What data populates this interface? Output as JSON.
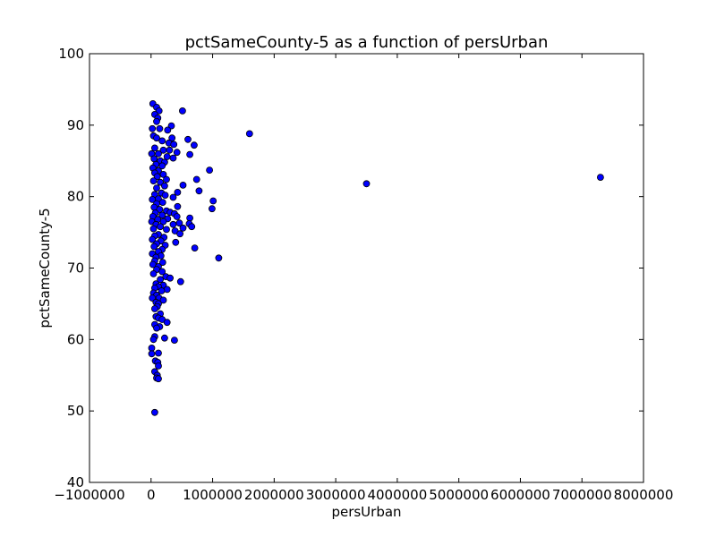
{
  "chart_data": {
    "type": "scatter",
    "title": "pctSameCounty-5 as a function of persUrban",
    "xlabel": "persUrban",
    "ylabel": "pctSameCounty-5",
    "xlim": [
      -1000000,
      8000000
    ],
    "ylim": [
      40,
      100
    ],
    "x_ticks": [
      -1000000,
      0,
      1000000,
      2000000,
      3000000,
      4000000,
      5000000,
      6000000,
      7000000,
      8000000
    ],
    "x_tick_labels": [
      "−1000000",
      "0",
      "1000000",
      "2000000",
      "3000000",
      "4000000",
      "5000000",
      "6000000",
      "7000000",
      "8000000"
    ],
    "y_ticks": [
      40,
      50,
      60,
      70,
      80,
      90,
      100
    ],
    "y_tick_labels": [
      "40",
      "50",
      "60",
      "70",
      "80",
      "90",
      "100"
    ],
    "grid": false,
    "marker_color": "#0000ff",
    "marker_edge_color": "#000000",
    "points": [
      [
        30000,
        93
      ],
      [
        90000,
        92.5
      ],
      [
        130000,
        92
      ],
      [
        510000,
        92
      ],
      [
        60000,
        91.5
      ],
      [
        110000,
        91
      ],
      [
        90000,
        90.5
      ],
      [
        330000,
        89.9
      ],
      [
        20000,
        89.5
      ],
      [
        140000,
        89.5
      ],
      [
        270000,
        89.3
      ],
      [
        1600000,
        88.8
      ],
      [
        40000,
        88.5
      ],
      [
        90000,
        88.2
      ],
      [
        340000,
        88.2
      ],
      [
        600000,
        88
      ],
      [
        180000,
        87.8
      ],
      [
        290000,
        87.5
      ],
      [
        370000,
        87.3
      ],
      [
        700000,
        87.2
      ],
      [
        60000,
        86.8
      ],
      [
        200000,
        86.5
      ],
      [
        300000,
        86.5
      ],
      [
        420000,
        86.2
      ],
      [
        10000,
        86
      ],
      [
        120000,
        86
      ],
      [
        630000,
        85.9
      ],
      [
        260000,
        85.6
      ],
      [
        360000,
        85.4
      ],
      [
        50000,
        85.3
      ],
      [
        150000,
        85
      ],
      [
        220000,
        84.8
      ],
      [
        80000,
        84.5
      ],
      [
        180000,
        84.3
      ],
      [
        30000,
        84
      ],
      [
        950000,
        83.7
      ],
      [
        120000,
        83.6
      ],
      [
        60000,
        83.3
      ],
      [
        200000,
        83.1
      ],
      [
        100000,
        82.8
      ],
      [
        740000,
        82.4
      ],
      [
        250000,
        82.4
      ],
      [
        7300000,
        82.7
      ],
      [
        3500000,
        81.8
      ],
      [
        40000,
        82.2
      ],
      [
        150000,
        82
      ],
      [
        520000,
        81.6
      ],
      [
        220000,
        81.5
      ],
      [
        90000,
        81.2
      ],
      [
        780000,
        80.8
      ],
      [
        430000,
        80.6
      ],
      [
        170000,
        80.5
      ],
      [
        60000,
        80.3
      ],
      [
        230000,
        80.2
      ],
      [
        360000,
        79.9
      ],
      [
        120000,
        79.7
      ],
      [
        20000,
        79.6
      ],
      [
        1010000,
        79.4
      ],
      [
        190000,
        79.2
      ],
      [
        90000,
        79
      ],
      [
        430000,
        78.6
      ],
      [
        50000,
        78.5
      ],
      [
        990000,
        78.3
      ],
      [
        140000,
        78.2
      ],
      [
        250000,
        78
      ],
      [
        310000,
        77.8
      ],
      [
        70000,
        77.7
      ],
      [
        380000,
        77.6
      ],
      [
        180000,
        77.4
      ],
      [
        420000,
        77.2
      ],
      [
        30000,
        77.2
      ],
      [
        630000,
        77
      ],
      [
        270000,
        76.9
      ],
      [
        110000,
        76.8
      ],
      [
        10000,
        76.5
      ],
      [
        200000,
        76.5
      ],
      [
        460000,
        76.3
      ],
      [
        620000,
        76.2
      ],
      [
        80000,
        76.1
      ],
      [
        360000,
        76.1
      ],
      [
        660000,
        75.8
      ],
      [
        150000,
        75.8
      ],
      [
        520000,
        75.6
      ],
      [
        40000,
        75.5
      ],
      [
        250000,
        75.4
      ],
      [
        390000,
        75.2
      ],
      [
        470000,
        74.8
      ],
      [
        120000,
        74.7
      ],
      [
        60000,
        74.5
      ],
      [
        210000,
        74.3
      ],
      [
        20000,
        74
      ],
      [
        160000,
        73.8
      ],
      [
        400000,
        73.6
      ],
      [
        90000,
        73.4
      ],
      [
        230000,
        73.2
      ],
      [
        50000,
        73
      ],
      [
        710000,
        72.8
      ],
      [
        180000,
        72.6
      ],
      [
        120000,
        72.3
      ],
      [
        20000,
        72
      ],
      [
        160000,
        71.7
      ],
      [
        80000,
        71.5
      ],
      [
        1100000,
        71.4
      ],
      [
        60000,
        71
      ],
      [
        190000,
        70.8
      ],
      [
        30000,
        70.5
      ],
      [
        120000,
        70.2
      ],
      [
        90000,
        69.8
      ],
      [
        180000,
        69.5
      ],
      [
        40000,
        69.2
      ],
      [
        240000,
        68.8
      ],
      [
        310000,
        68.6
      ],
      [
        150000,
        68.4
      ],
      [
        480000,
        68.1
      ],
      [
        80000,
        67.8
      ],
      [
        200000,
        67.6
      ],
      [
        120000,
        67.4
      ],
      [
        60000,
        67.2
      ],
      [
        260000,
        67
      ],
      [
        170000,
        66.8
      ],
      [
        40000,
        66.5
      ],
      [
        90000,
        66.2
      ],
      [
        130000,
        65.8
      ],
      [
        20000,
        65.8
      ],
      [
        200000,
        65.5
      ],
      [
        80000,
        65.2
      ],
      [
        120000,
        65
      ],
      [
        100000,
        64.6
      ],
      [
        60000,
        64.3
      ],
      [
        150000,
        63.6
      ],
      [
        80000,
        63.2
      ],
      [
        120000,
        63
      ],
      [
        180000,
        62.8
      ],
      [
        260000,
        62.4
      ],
      [
        60000,
        62.1
      ],
      [
        140000,
        61.8
      ],
      [
        90000,
        61.6
      ],
      [
        220000,
        60.2
      ],
      [
        60000,
        60.4
      ],
      [
        40000,
        60
      ],
      [
        380000,
        59.9
      ],
      [
        10000,
        58.8
      ],
      [
        10000,
        58
      ],
      [
        120000,
        58.1
      ],
      [
        70000,
        57
      ],
      [
        110000,
        56.8
      ],
      [
        120000,
        56.3
      ],
      [
        60000,
        55.5
      ],
      [
        100000,
        55
      ],
      [
        90000,
        54.6
      ],
      [
        120000,
        54.5
      ],
      [
        60000,
        49.8
      ]
    ]
  }
}
